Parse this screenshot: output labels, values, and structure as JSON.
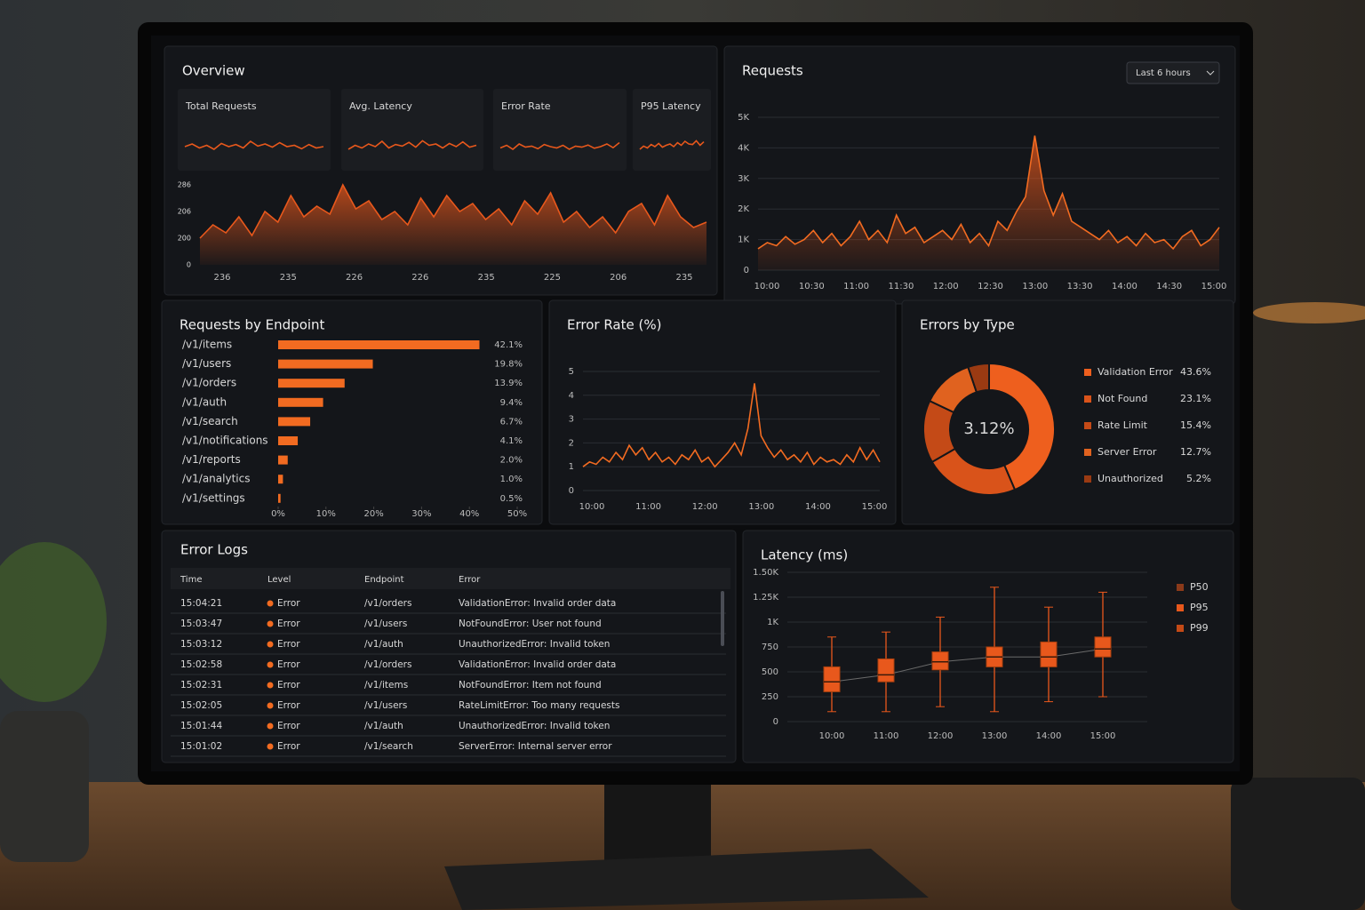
{
  "chart_data": [
    {
      "type": "overview",
      "title": "Overview",
      "color": "#e8581c",
      "cards": [
        {
          "label": "Total Requests",
          "ylim": [
            0,
            100
          ],
          "values": [
            50,
            60,
            45,
            55,
            40,
            62,
            50,
            58,
            45,
            70,
            52,
            60,
            48,
            65,
            50,
            55,
            42,
            58,
            45,
            50
          ]
        },
        {
          "label": "Avg. Latency",
          "ylim": [
            0,
            100
          ],
          "values": [
            40,
            55,
            45,
            60,
            50,
            70,
            45,
            58,
            52,
            66,
            48,
            72,
            55,
            60,
            45,
            62,
            50,
            68,
            48,
            55
          ]
        },
        {
          "label": "Error Rate",
          "ylim": [
            0,
            100
          ],
          "values": [
            45,
            55,
            40,
            60,
            48,
            52,
            42,
            58,
            50,
            45,
            55,
            40,
            52,
            48,
            56,
            44,
            50,
            60,
            46,
            65
          ]
        },
        {
          "label": "P95 Latency",
          "ylim": [
            0,
            100
          ],
          "values": [
            40,
            52,
            45,
            58,
            50,
            62,
            48,
            55,
            60,
            50,
            65,
            55,
            70,
            60,
            58,
            72,
            55,
            68
          ]
        }
      ],
      "ylim": [
        0,
        300
      ],
      "values": [
        100,
        150,
        120,
        180,
        110,
        200,
        160,
        260,
        180,
        220,
        190,
        300,
        210,
        240,
        170,
        200,
        150,
        250,
        180,
        260,
        200,
        230,
        170,
        210,
        150,
        240,
        190,
        270,
        160,
        200,
        140,
        180,
        120,
        200,
        230,
        150,
        260,
        180,
        140,
        160
      ],
      "y_labels": [
        "286",
        "206",
        "200",
        "0"
      ],
      "x_labels": [
        "236",
        "235",
        "226",
        "226",
        "235",
        "225",
        "206",
        "235"
      ]
    },
    {
      "type": "line",
      "title": "Requests",
      "range_selector": "Last 6 hours",
      "color": "#f26b21",
      "ylim": [
        0,
        5000
      ],
      "yticks": [
        0,
        {
          "value": 1000,
          "label": "1K"
        },
        {
          "value": 2000,
          "label": "2K"
        },
        {
          "value": 3000,
          "label": "3K"
        },
        {
          "value": 4000,
          "label": "4K"
        },
        {
          "value": 5000,
          "label": "5K"
        }
      ],
      "x_labels": [
        "10:00",
        "10:30",
        "11:00",
        "11:30",
        "12:00",
        "12:30",
        "13:00",
        "13:30",
        "14:00",
        "14:30",
        "15:00"
      ],
      "values": [
        700,
        900,
        800,
        1100,
        850,
        1000,
        1300,
        900,
        1200,
        800,
        1100,
        1600,
        1000,
        1300,
        900,
        1800,
        1200,
        1400,
        900,
        1100,
        1300,
        1000,
        1500,
        900,
        1200,
        800,
        1600,
        1300,
        1900,
        2400,
        4400,
        2600,
        1800,
        2500,
        1600,
        1400,
        1200,
        1000,
        1300,
        900,
        1100,
        800,
        1200,
        900,
        1000,
        700,
        1100,
        1300,
        800,
        1000,
        1400
      ]
    },
    {
      "type": "hbar",
      "title": "Requests by Endpoint",
      "color": "#f26b21",
      "categories": [
        "/v1/items",
        "/v1/users",
        "/v1/orders",
        "/v1/auth",
        "/v1/search",
        "/v1/notifications",
        "/v1/reports",
        "/v1/analytics",
        "/v1/settings"
      ],
      "values": [
        42.1,
        19.8,
        13.9,
        9.4,
        6.7,
        4.1,
        2.0,
        1.0,
        0.5
      ],
      "value_labels": [
        "42.1%",
        "19.8%",
        "13.9%",
        "9.4%",
        "6.7%",
        "4.1%",
        "2.0%",
        "1.0%",
        "0.5%"
      ],
      "xlim": [
        0,
        50
      ],
      "xticks": [
        {
          "value": 0,
          "label": "0%"
        },
        {
          "value": 10,
          "label": "10%"
        },
        {
          "value": 20,
          "label": "20%"
        },
        {
          "value": 30,
          "label": "30%"
        },
        {
          "value": 40,
          "label": "40%"
        },
        {
          "value": 50,
          "label": "50%"
        }
      ]
    },
    {
      "type": "line",
      "title": "Error Rate (%)",
      "color": "#f26b21",
      "ylim": [
        0,
        5
      ],
      "yticks": [
        0,
        1,
        2,
        3,
        4,
        5
      ],
      "x_labels": [
        "10:00",
        "11:00",
        "12:00",
        "13:00",
        "14:00",
        "15:00"
      ],
      "values": [
        1,
        1.2,
        1.1,
        1.4,
        1.2,
        1.6,
        1.3,
        1.9,
        1.5,
        1.8,
        1.3,
        1.6,
        1.2,
        1.4,
        1.1,
        1.5,
        1.3,
        1.7,
        1.2,
        1.4,
        1,
        1.3,
        1.6,
        2,
        1.5,
        2.6,
        4.5,
        2.3,
        1.8,
        1.4,
        1.7,
        1.3,
        1.5,
        1.2,
        1.6,
        1.1,
        1.4,
        1.2,
        1.3,
        1.1,
        1.5,
        1.2,
        1.8,
        1.3,
        1.7,
        1.2
      ]
    },
    {
      "type": "donut",
      "title": "Errors by Type",
      "center_label": "3.12%",
      "categories": [
        "Validation Error",
        "Not Found",
        "Rate Limit",
        "Server Error",
        "Unauthorized"
      ],
      "values": [
        43.6,
        23.1,
        15.4,
        12.7,
        5.2
      ],
      "value_labels": [
        "43.6%",
        "23.1%",
        "15.4%",
        "12.7%",
        "5.2%"
      ],
      "colors": [
        "#ee5f1e",
        "#d9531a",
        "#c44a17",
        "#e0621f",
        "#9a3a12"
      ]
    },
    {
      "type": "box",
      "title": "Latency (ms)",
      "ylim": [
        0,
        1500
      ],
      "yticks": [
        0,
        250,
        500,
        750,
        {
          "value": 1000,
          "label": "1K"
        },
        {
          "value": 1250,
          "label": "1.25K"
        },
        {
          "value": 1500,
          "label": "1.50K"
        }
      ],
      "categories": [
        "10:00",
        "11:00",
        "12:00",
        "13:00",
        "14:00",
        "15:00"
      ],
      "boxes": [
        {
          "low": 100,
          "q1": 300,
          "median": 400,
          "q3": 550,
          "high": 850
        },
        {
          "low": 100,
          "q1": 400,
          "median": 470,
          "q3": 630,
          "high": 900
        },
        {
          "low": 150,
          "q1": 520,
          "median": 600,
          "q3": 700,
          "high": 1050
        },
        {
          "low": 100,
          "q1": 550,
          "median": 650,
          "q3": 750,
          "high": 1350
        },
        {
          "low": 200,
          "q1": 550,
          "median": 650,
          "q3": 800,
          "high": 1150
        },
        {
          "low": 250,
          "q1": 650,
          "median": 730,
          "q3": 850,
          "high": 1300
        }
      ],
      "color": "#e8581c",
      "legend": [
        {
          "name": "P50",
          "color": "#8b3a1a"
        },
        {
          "name": "P95",
          "color": "#e8581c"
        },
        {
          "name": "P99",
          "color": "#c44a16"
        }
      ]
    }
  ],
  "error_logs": {
    "title": "Error Logs",
    "columns": [
      "Time",
      "Level",
      "Endpoint",
      "Error"
    ],
    "rows": [
      [
        "15:04:21",
        "Error",
        "/v1/orders",
        "ValidationError: Invalid order data"
      ],
      [
        "15:03:47",
        "Error",
        "/v1/users",
        "NotFoundError: User not found"
      ],
      [
        "15:03:12",
        "Error",
        "/v1/auth",
        "UnauthorizedError: Invalid token"
      ],
      [
        "15:02:58",
        "Error",
        "/v1/orders",
        "ValidationError: Invalid order data"
      ],
      [
        "15:02:31",
        "Error",
        "/v1/items",
        "NotFoundError: Item not found"
      ],
      [
        "15:02:05",
        "Error",
        "/v1/users",
        "RateLimitError: Too many requests"
      ],
      [
        "15:01:44",
        "Error",
        "/v1/auth",
        "UnauthorizedError: Invalid token"
      ],
      [
        "15:01:02",
        "Error",
        "/v1/search",
        "ServerError: Internal server error"
      ]
    ]
  }
}
